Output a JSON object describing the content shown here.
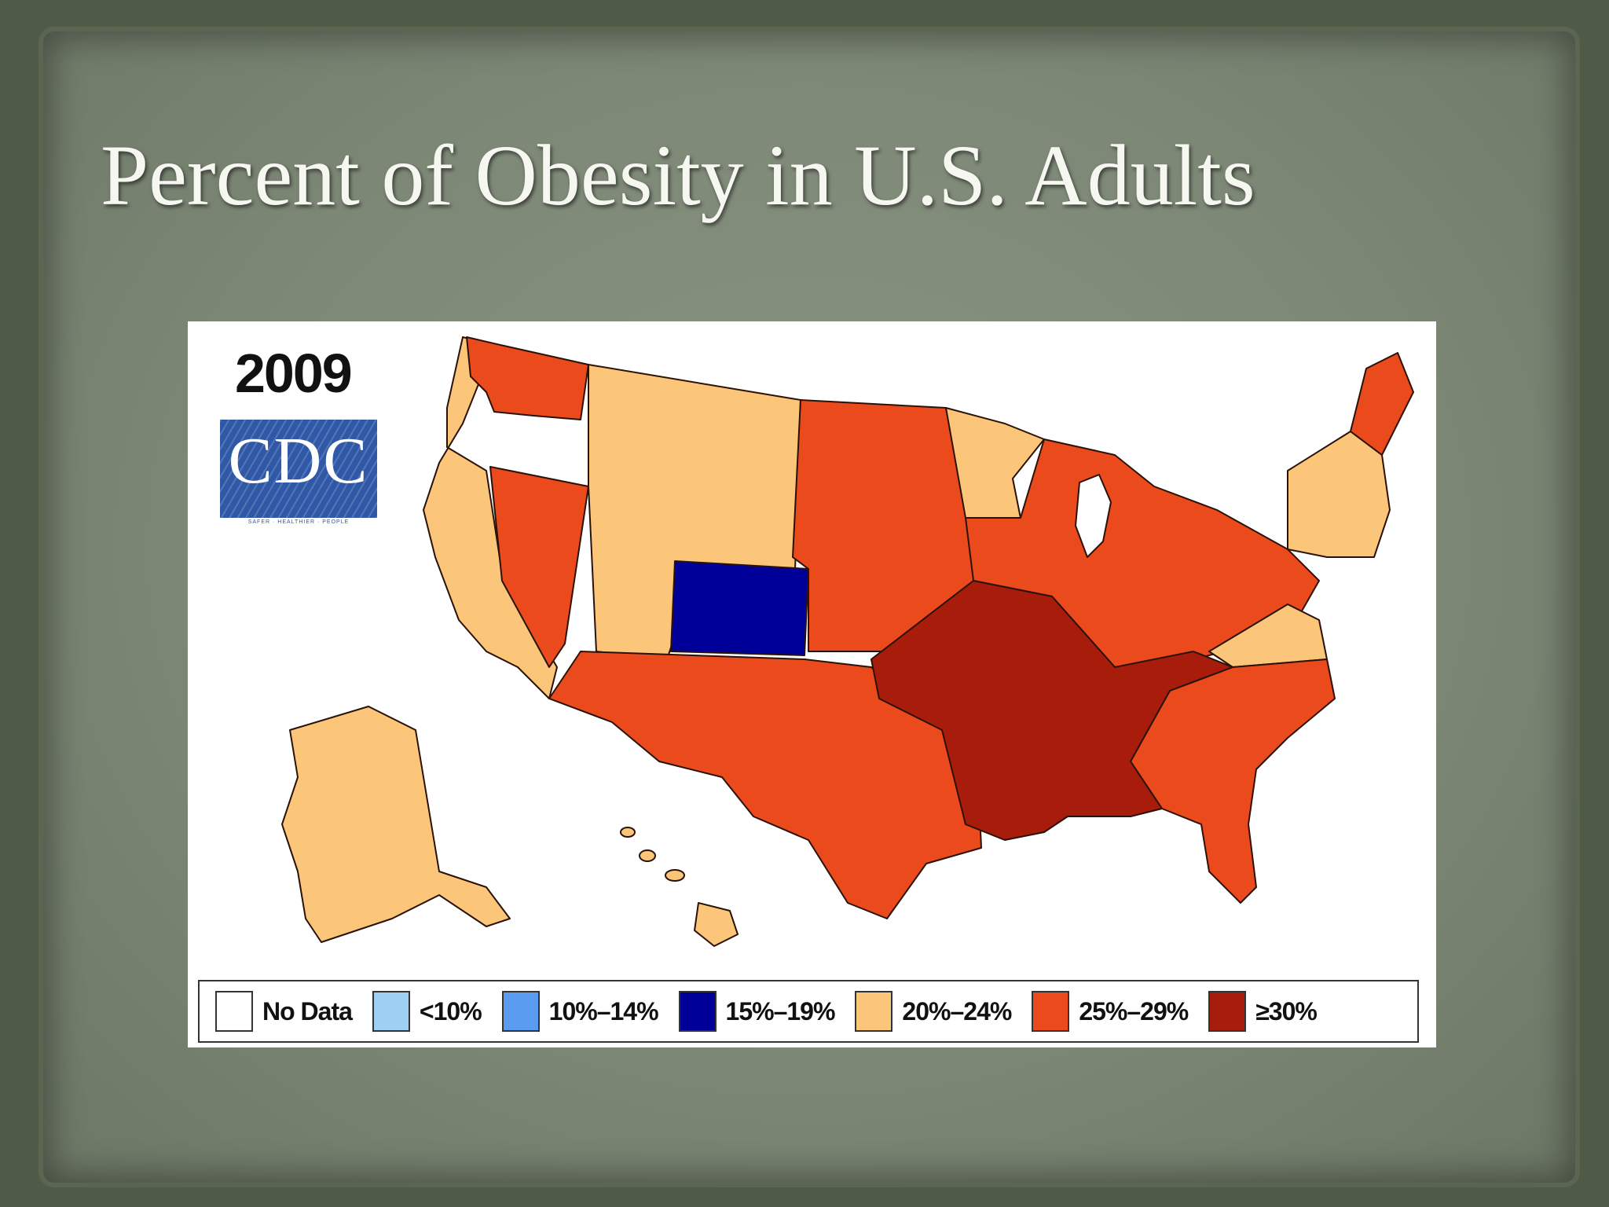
{
  "slide": {
    "title": "Percent of Obesity in U.S. Adults"
  },
  "map": {
    "year": "2009",
    "logo": {
      "text": "CDC",
      "tagline": "SAFER · HEALTHIER · PEOPLE"
    },
    "colors": {
      "no_data": "#ffffff",
      "lt10": "#9fd0f4",
      "b10_14": "#5a9cf0",
      "b15_19": "#000099",
      "b20_24": "#fbc57a",
      "b25_29": "#ea4a1c",
      "ge30": "#a81c0c",
      "border": "#2a1208"
    },
    "legend": [
      {
        "label": "No Data",
        "color": "#ffffff"
      },
      {
        "label": "<10%",
        "color": "#9fd0f4"
      },
      {
        "label": "10%–14%",
        "color": "#5a9cf0"
      },
      {
        "label": "15%–19%",
        "color": "#000099"
      },
      {
        "label": "20%–24%",
        "color": "#fbc57a"
      },
      {
        "label": "25%–29%",
        "color": "#ea4a1c"
      },
      {
        "label": "≥30%",
        "color": "#a81c0c"
      }
    ]
  }
}
